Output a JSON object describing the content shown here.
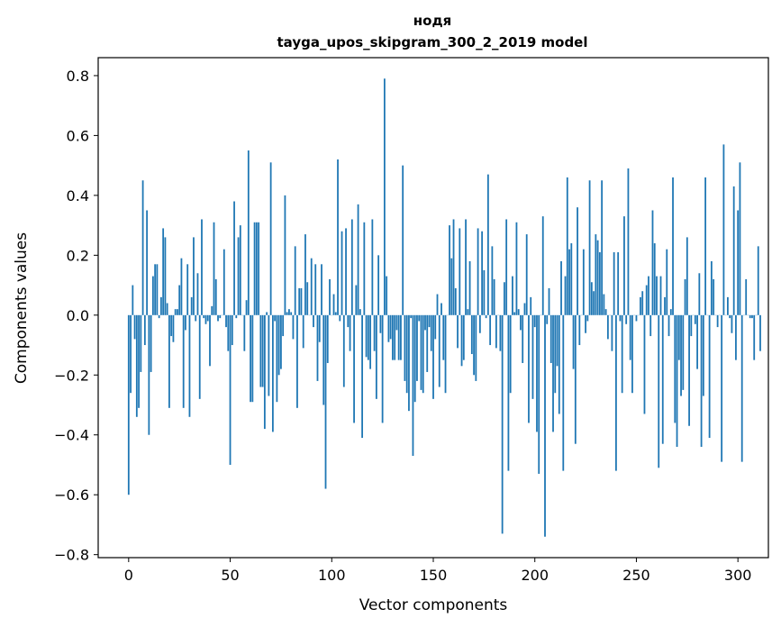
{
  "chart_data": {
    "type": "bar",
    "title_lines": [
      "нодя",
      "tayga_upos_skipgram_300_2_2019 model"
    ],
    "xlabel": "Vector components",
    "ylabel": "Components values",
    "xlim": [
      -15,
      315
    ],
    "ylim": [
      -0.81,
      0.86
    ],
    "xticks": [
      0,
      50,
      100,
      150,
      200,
      250,
      300
    ],
    "xtick_labels": [
      "0",
      "50",
      "100",
      "150",
      "200",
      "250",
      "300"
    ],
    "yticks": [
      -0.8,
      -0.6,
      -0.4,
      -0.2,
      0.0,
      0.2,
      0.4,
      0.6,
      0.8
    ],
    "ytick_labels": [
      "−0.8",
      "−0.6",
      "−0.4",
      "−0.2",
      "0.0",
      "0.2",
      "0.4",
      "0.6",
      "0.8"
    ],
    "grid": false,
    "bar_color": "#1f77b4",
    "series": [
      {
        "name": "нодя",
        "x_start": 0,
        "values": [
          -0.6,
          -0.26,
          0.1,
          -0.08,
          -0.34,
          -0.31,
          -0.19,
          0.45,
          -0.1,
          0.35,
          -0.4,
          -0.19,
          0.13,
          0.17,
          0.17,
          -0.01,
          0.06,
          0.29,
          0.26,
          0.04,
          -0.31,
          -0.07,
          -0.09,
          0.02,
          0.02,
          0.1,
          0.19,
          -0.31,
          -0.05,
          0.17,
          -0.34,
          0.06,
          0.26,
          -0.02,
          0.14,
          -0.28,
          0.32,
          -0.01,
          -0.03,
          -0.02,
          -0.17,
          0.03,
          0.31,
          0.12,
          -0.02,
          -0.01,
          0.0,
          0.22,
          -0.04,
          -0.12,
          -0.5,
          -0.1,
          0.38,
          -0.01,
          0.26,
          0.3,
          0.0,
          -0.12,
          0.05,
          0.55,
          -0.29,
          -0.29,
          0.31,
          0.31,
          0.31,
          -0.24,
          -0.24,
          -0.38,
          0.01,
          -0.27,
          0.51,
          -0.39,
          -0.02,
          -0.29,
          -0.2,
          -0.18,
          -0.07,
          0.4,
          0.01,
          0.02,
          0.01,
          -0.08,
          0.23,
          -0.31,
          0.09,
          0.09,
          -0.11,
          0.27,
          0.11,
          0.0,
          0.19,
          -0.04,
          0.17,
          -0.22,
          -0.09,
          0.17,
          -0.3,
          -0.58,
          -0.16,
          0.12,
          0.0,
          0.07,
          0.01,
          0.52,
          -0.02,
          0.28,
          -0.24,
          0.29,
          -0.04,
          -0.12,
          0.32,
          -0.36,
          0.1,
          0.37,
          0.02,
          -0.41,
          0.31,
          -0.14,
          -0.15,
          -0.18,
          0.32,
          -0.12,
          -0.28,
          0.2,
          -0.06,
          -0.36,
          0.79,
          0.13,
          -0.09,
          -0.08,
          -0.15,
          -0.15,
          -0.05,
          -0.15,
          -0.15,
          0.5,
          -0.22,
          -0.26,
          -0.32,
          -0.01,
          -0.47,
          -0.29,
          -0.22,
          -0.02,
          -0.25,
          -0.26,
          -0.05,
          -0.19,
          -0.04,
          -0.12,
          -0.28,
          -0.08,
          0.07,
          -0.24,
          0.04,
          -0.15,
          -0.26,
          0.0,
          0.3,
          0.19,
          0.32,
          0.09,
          -0.11,
          0.29,
          -0.17,
          -0.15,
          0.32,
          0.02,
          0.18,
          -0.13,
          -0.2,
          -0.22,
          0.29,
          -0.06,
          0.28,
          0.15,
          -0.01,
          0.47,
          -0.1,
          0.23,
          0.12,
          -0.11,
          0.0,
          -0.12,
          -0.73,
          0.11,
          0.32,
          -0.52,
          -0.26,
          0.13,
          0.01,
          0.31,
          0.02,
          -0.05,
          -0.16,
          0.04,
          0.27,
          -0.36,
          0.06,
          -0.28,
          -0.04,
          -0.39,
          -0.53,
          0.0,
          0.33,
          -0.74,
          -0.03,
          0.09,
          -0.16,
          -0.39,
          -0.26,
          -0.17,
          -0.33,
          0.18,
          -0.52,
          0.13,
          0.46,
          0.22,
          0.24,
          -0.18,
          -0.43,
          0.36,
          -0.1,
          0.0,
          0.22,
          -0.06,
          -0.02,
          0.45,
          0.11,
          0.08,
          0.27,
          0.25,
          0.21,
          0.45,
          0.07,
          0.02,
          -0.08,
          0.0,
          -0.12,
          0.21,
          -0.52,
          0.21,
          -0.02,
          -0.26,
          0.33,
          -0.03,
          0.49,
          -0.15,
          -0.26,
          0.0,
          -0.02,
          0.0,
          0.06,
          0.08,
          -0.33,
          0.1,
          0.13,
          -0.07,
          0.35,
          0.24,
          0.13,
          -0.51,
          0.13,
          -0.43,
          0.06,
          0.22,
          -0.07,
          0.02,
          0.46,
          -0.36,
          -0.44,
          -0.15,
          -0.27,
          -0.25,
          0.12,
          0.26,
          -0.37,
          -0.07,
          0.0,
          -0.03,
          -0.18,
          0.14,
          -0.44,
          -0.27,
          0.46,
          0.0,
          -0.41,
          0.18,
          0.12,
          0.0,
          -0.04,
          0.0,
          -0.49,
          0.57,
          0.0,
          0.06,
          -0.01,
          -0.06,
          0.43,
          -0.15,
          0.35,
          0.51,
          -0.49,
          0.0,
          0.12,
          0.0,
          -0.01,
          -0.01,
          -0.15,
          0.0,
          0.23,
          -0.12
        ]
      }
    ]
  }
}
